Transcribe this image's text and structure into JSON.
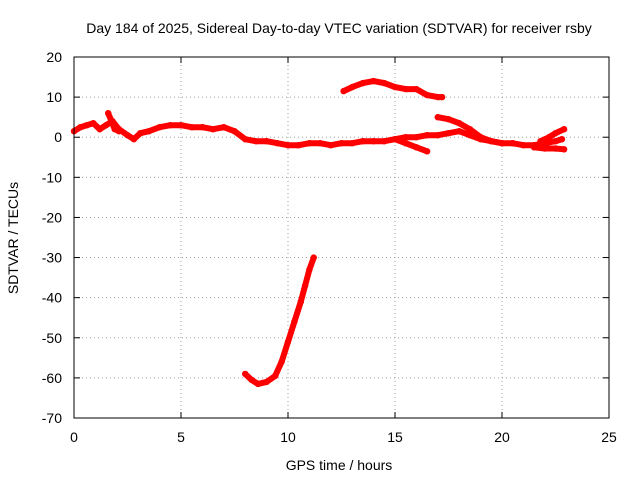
{
  "chart_data": {
    "type": "scatter",
    "title": "Day 184 of 2025, Sidereal Day-to-day VTEC variation (SDTVAR) for receiver rsby",
    "xlabel": "GPS time / hours",
    "ylabel": "SDTVAR / TECUs",
    "xlim": [
      0,
      25
    ],
    "ylim": [
      -70,
      20
    ],
    "x_ticks": [
      0,
      5,
      10,
      15,
      20,
      25
    ],
    "y_ticks": [
      20,
      10,
      0,
      -10,
      -20,
      -30,
      -40,
      -50,
      -60,
      -70
    ],
    "grid": true,
    "series_color": "#ff0000",
    "series": [
      {
        "name": "sat-trace-main",
        "points": [
          [
            0.0,
            1.5
          ],
          [
            0.3,
            2.5
          ],
          [
            0.6,
            3.0
          ],
          [
            0.9,
            3.5
          ],
          [
            1.2,
            2.0
          ],
          [
            1.5,
            3.0
          ],
          [
            1.8,
            4.0
          ],
          [
            2.1,
            2.0
          ],
          [
            2.5,
            0.5
          ],
          [
            2.8,
            -0.5
          ],
          [
            3.1,
            1.0
          ],
          [
            3.5,
            1.5
          ],
          [
            4.0,
            2.5
          ],
          [
            4.5,
            3.0
          ],
          [
            5.0,
            3.0
          ],
          [
            5.5,
            2.5
          ],
          [
            6.0,
            2.5
          ],
          [
            6.5,
            2.0
          ],
          [
            7.0,
            2.5
          ],
          [
            7.5,
            1.5
          ],
          [
            8.0,
            -0.5
          ],
          [
            8.5,
            -1.0
          ],
          [
            9.0,
            -1.0
          ],
          [
            9.5,
            -1.5
          ],
          [
            10.0,
            -2.0
          ],
          [
            10.5,
            -2.0
          ],
          [
            11.0,
            -1.5
          ],
          [
            11.5,
            -1.5
          ],
          [
            12.0,
            -2.0
          ],
          [
            12.5,
            -1.5
          ],
          [
            13.0,
            -1.5
          ],
          [
            13.5,
            -1.0
          ],
          [
            14.0,
            -1.0
          ],
          [
            14.5,
            -1.0
          ],
          [
            15.0,
            -0.5
          ],
          [
            15.5,
            0.0
          ],
          [
            16.0,
            0.0
          ],
          [
            16.5,
            0.5
          ],
          [
            17.0,
            0.5
          ],
          [
            17.5,
            1.0
          ],
          [
            18.0,
            1.5
          ],
          [
            18.5,
            0.5
          ],
          [
            19.0,
            -0.5
          ],
          [
            19.5,
            -1.0
          ],
          [
            20.0,
            -1.5
          ],
          [
            20.5,
            -1.5
          ]
        ]
      },
      {
        "name": "sat-trace-spike",
        "points": [
          [
            1.6,
            6.0
          ],
          [
            1.75,
            4.0
          ],
          [
            1.9,
            2.0
          ],
          [
            2.1,
            1.5
          ]
        ]
      },
      {
        "name": "sat-trace-dip",
        "points": [
          [
            15.0,
            -0.5
          ],
          [
            15.5,
            -1.5
          ],
          [
            16.0,
            -2.5
          ],
          [
            16.5,
            -3.5
          ]
        ]
      },
      {
        "name": "sat-trace-upper",
        "points": [
          [
            12.6,
            11.5
          ],
          [
            13.0,
            12.5
          ],
          [
            13.5,
            13.5
          ],
          [
            14.0,
            14.0
          ],
          [
            14.5,
            13.5
          ],
          [
            15.0,
            12.5
          ],
          [
            15.5,
            12.0
          ],
          [
            16.0,
            12.0
          ],
          [
            16.5,
            10.5
          ],
          [
            17.0,
            10.0
          ],
          [
            17.2,
            10.0
          ]
        ]
      },
      {
        "name": "sat-trace-rise",
        "points": [
          [
            17.0,
            5.0
          ],
          [
            17.5,
            4.5
          ],
          [
            18.0,
            3.5
          ],
          [
            18.5,
            2.0
          ],
          [
            19.0,
            0.0
          ],
          [
            19.5,
            -1.0
          ],
          [
            20.0,
            -1.5
          ]
        ]
      },
      {
        "name": "sat-trace-late",
        "points": [
          [
            20.5,
            -1.5
          ],
          [
            21.0,
            -2.0
          ],
          [
            21.5,
            -2.0
          ],
          [
            22.0,
            -1.5
          ],
          [
            22.5,
            -1.0
          ],
          [
            22.8,
            -0.5
          ]
        ]
      },
      {
        "name": "sat-trace-end-up",
        "points": [
          [
            21.8,
            -1.0
          ],
          [
            22.2,
            0.0
          ],
          [
            22.5,
            1.0
          ],
          [
            22.9,
            2.0
          ]
        ]
      },
      {
        "name": "sat-trace-end-down",
        "points": [
          [
            21.5,
            -2.5
          ],
          [
            22.0,
            -2.8
          ],
          [
            22.5,
            -2.8
          ],
          [
            22.9,
            -3.0
          ]
        ]
      },
      {
        "name": "sat-trace-deep",
        "points": [
          [
            8.0,
            -59.0
          ],
          [
            8.3,
            -60.5
          ],
          [
            8.6,
            -61.5
          ],
          [
            9.0,
            -61.0
          ],
          [
            9.4,
            -59.5
          ],
          [
            9.7,
            -56.0
          ],
          [
            10.0,
            -51.0
          ],
          [
            10.3,
            -46.0
          ],
          [
            10.6,
            -41.0
          ],
          [
            10.8,
            -37.0
          ],
          [
            11.0,
            -33.0
          ],
          [
            11.2,
            -30.0
          ]
        ]
      }
    ]
  }
}
